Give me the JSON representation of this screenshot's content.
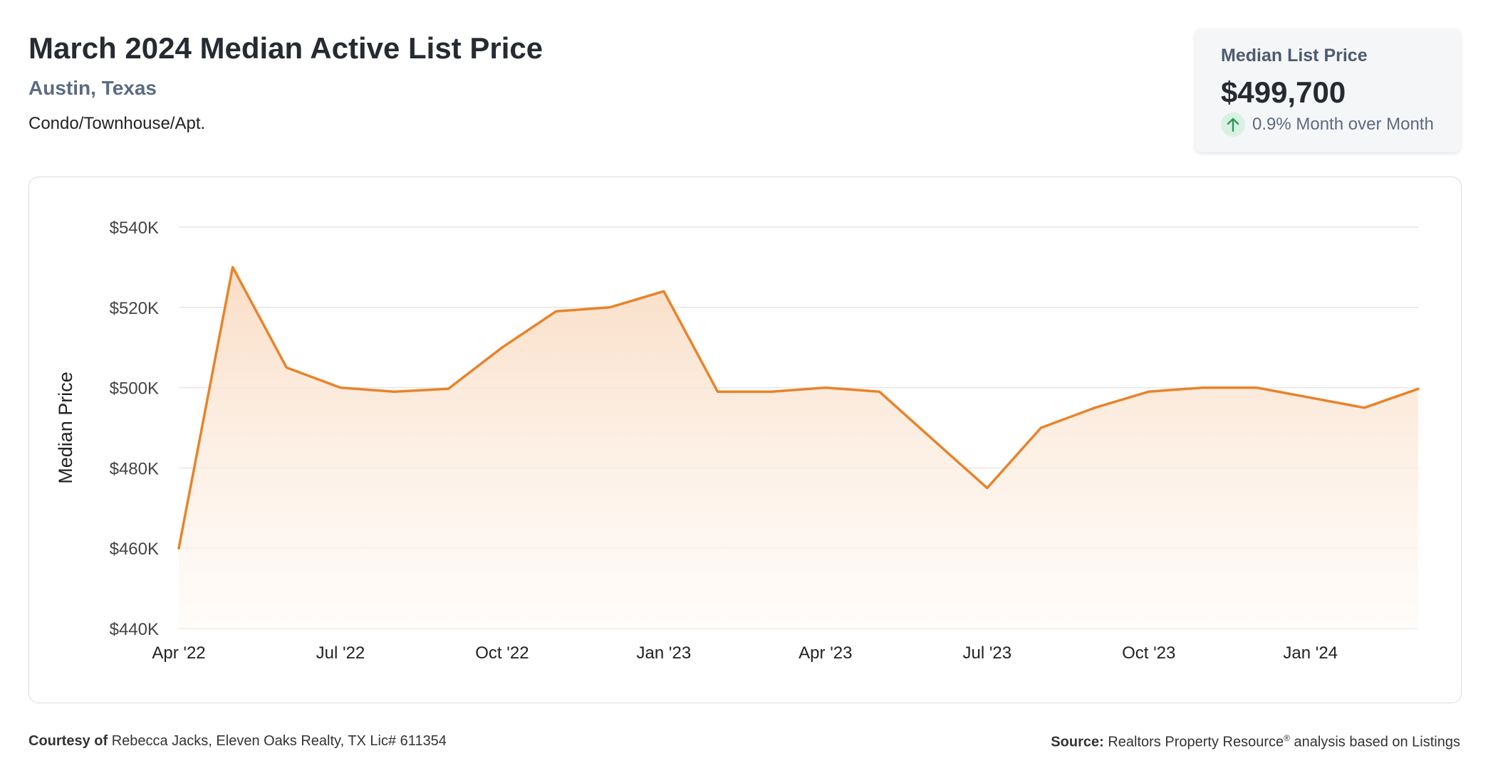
{
  "header": {
    "title": "March 2024 Median Active List Price",
    "location": "Austin, Texas",
    "property_type": "Condo/Townhouse/Apt."
  },
  "kpi": {
    "label": "Median List Price",
    "value": "$499,700",
    "change_text": "0.9% Month over Month",
    "change_direction": "up",
    "icon": "arrow-up-icon"
  },
  "footer": {
    "courtesy_label": "Courtesy of",
    "courtesy_text": "Rebecca Jacks, Eleven Oaks Realty, TX Lic# 611354",
    "source_label": "Source:",
    "source_text_pre": "Realtors Property Resource",
    "source_mark": "®",
    "source_text_post": "analysis based on Listings"
  },
  "colors": {
    "line": "#e8832a",
    "fill_top": "#f9dcc3",
    "fill_bottom": "#fffaf6",
    "grid": "#e6e6e6",
    "axis_text": "#444444",
    "up_arrow": "#2e9c5a"
  },
  "chart_data": {
    "type": "area",
    "title": "",
    "xlabel": "",
    "ylabel": "Median Price",
    "x": [
      "Apr '22",
      "May '22",
      "Jun '22",
      "Jul '22",
      "Aug '22",
      "Sep '22",
      "Oct '22",
      "Nov '22",
      "Dec '22",
      "Jan '23",
      "Feb '23",
      "Mar '23",
      "Apr '23",
      "May '23",
      "Jun '23",
      "Jul '23",
      "Aug '23",
      "Sep '23",
      "Oct '23",
      "Nov '23",
      "Dec '23",
      "Jan '24",
      "Feb '24",
      "Mar '24"
    ],
    "series": [
      {
        "values": [
          460000,
          530000,
          505000,
          500000,
          499000,
          499700,
          510000,
          519000,
          520000,
          524000,
          499000,
          499000,
          500000,
          499000,
          487000,
          475000,
          490000,
          495000,
          499000,
          500000,
          500000,
          497500,
          495000,
          499700
        ]
      }
    ],
    "x_tick_labels": [
      "Apr '22",
      "Jul '22",
      "Oct '22",
      "Jan '23",
      "Apr '23",
      "Jul '23",
      "Oct '23",
      "Jan '24"
    ],
    "y_ticks": [
      440000,
      460000,
      480000,
      500000,
      520000,
      540000
    ],
    "y_tick_labels": [
      "$440K",
      "$460K",
      "$480K",
      "$500K",
      "$520K",
      "$540K"
    ],
    "ylim": [
      440000,
      540000
    ],
    "grid": true,
    "legend": false
  }
}
